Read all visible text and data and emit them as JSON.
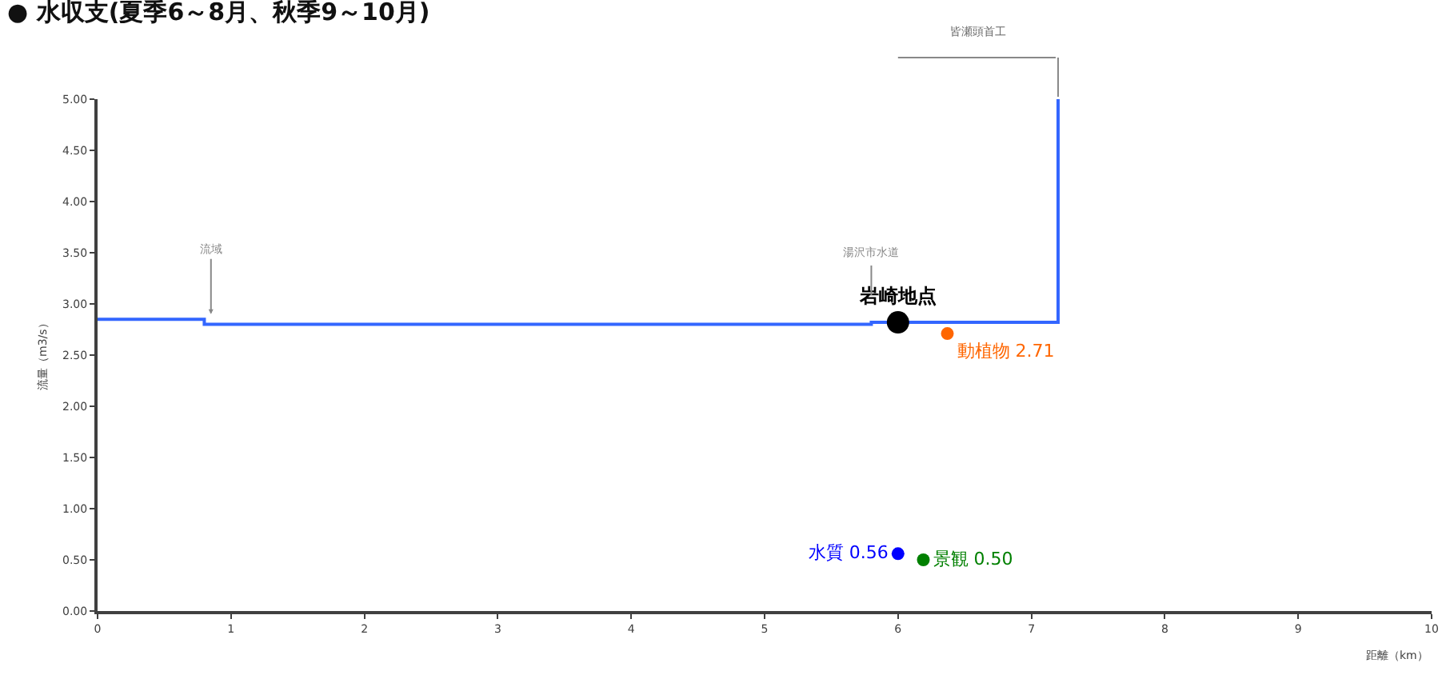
{
  "chart_data": {
    "type": "scatter",
    "title": "● 水収支(夏季6～8月、秋季9～10月)",
    "xlabel": "距離（km）",
    "ylabel": "流量（m3/s）",
    "series": [
      {
        "type": "step",
        "color": "#3366ff",
        "x": [
          0,
          0.8,
          5.8,
          7.2,
          7.2
        ],
        "values": [
          2.85,
          2.8,
          2.82,
          2.82,
          5.0
        ],
        "marker": "none"
      },
      {
        "name": "岩崎地点",
        "color": "#000000",
        "x": [
          6.0
        ],
        "values": [
          2.82
        ],
        "marker": "circle"
      },
      {
        "name": "動植物",
        "color": "#ff6600",
        "x": [
          6.37
        ],
        "values": [
          2.71
        ],
        "value_labels": [
          "2.71"
        ],
        "marker": "circle"
      },
      {
        "name": "水質",
        "color": "#0000ff",
        "x": [
          6.0
        ],
        "values": [
          0.56
        ],
        "value_labels": [
          "0.56"
        ],
        "marker": "circle"
      },
      {
        "name": "景観",
        "color": "#008000",
        "x": [
          6.19
        ],
        "values": [
          0.5
        ],
        "value_labels": [
          "0.50"
        ],
        "marker": "circle"
      }
    ],
    "annotations": [
      {
        "text": "流域",
        "x": 0.85,
        "y": 2.9
      },
      "湯沢市水道",
      "皆瀬頭首工"
    ],
    "xlim": [
      0,
      10
    ],
    "xticks": [
      0,
      1,
      2,
      3,
      4,
      5,
      6,
      7,
      8,
      9,
      10
    ],
    "ylim": [
      0,
      5
    ],
    "yticks": [
      {
        "value": 0,
        "label": "0.00"
      },
      {
        "value": 0.5,
        "label": "0.50"
      },
      {
        "value": 1,
        "label": "1.00"
      },
      {
        "value": 1.5,
        "label": "1.50"
      },
      {
        "value": 2,
        "label": "2.00"
      },
      {
        "value": 2.5,
        "label": "2.50"
      },
      {
        "value": 3,
        "label": "3.00"
      },
      {
        "value": 3.5,
        "label": "3.50"
      },
      {
        "value": 4,
        "label": "4.00"
      },
      {
        "value": 4.5,
        "label": "4.50"
      },
      {
        "value": 5,
        "label": "5.00"
      }
    ]
  }
}
